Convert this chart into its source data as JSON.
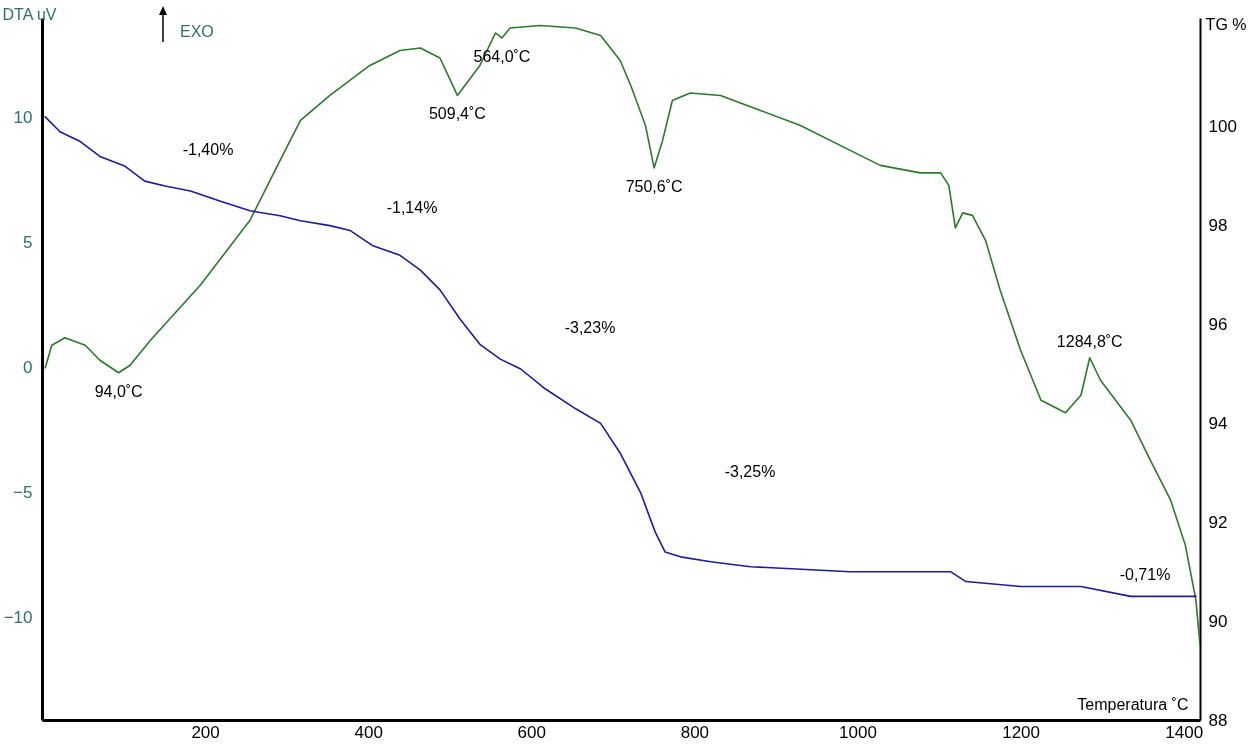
{
  "chart_data": {
    "type": "line",
    "xlabel": "Temperatura ˚C",
    "ylabel": "DTA uV",
    "y2label": "TG %",
    "xlim": [
      0,
      1420
    ],
    "xticks": [
      200,
      400,
      600,
      800,
      1000,
      1200,
      1400
    ],
    "ylim": [
      -14.1,
      14.0
    ],
    "yticks": [
      -10,
      -5,
      0,
      5,
      10
    ],
    "y2lim": [
      88,
      102.2
    ],
    "y2ticks": [
      88,
      90,
      92,
      94,
      96,
      98,
      100
    ],
    "series": [
      {
        "type": "line",
        "color": "#2b7a2b",
        "x": [
          4,
          12,
          28,
          53,
          71,
          94,
          108,
          133,
          194,
          255,
          292,
          317,
          353,
          402,
          439,
          464,
          488,
          509.4,
          537,
          556,
          564,
          574,
          611,
          654,
          685,
          709,
          722,
          740,
          750.6,
          761,
          773,
          795,
          832,
          881,
          930,
          991,
          1028,
          1077,
          1102,
          1112,
          1120,
          1129,
          1141,
          1157,
          1175,
          1200,
          1225,
          1255,
          1274,
          1284.8,
          1298,
          1335,
          1359,
          1384,
          1402,
          1415,
          1420
        ],
        "values": [
          0.0,
          0.9,
          1.2,
          0.9,
          0.3,
          -0.2,
          0.1,
          1.1,
          3.3,
          5.9,
          8.3,
          9.9,
          10.9,
          12.1,
          12.7,
          12.8,
          12.4,
          10.9,
          12.1,
          13.4,
          13.2,
          13.6,
          13.7,
          13.6,
          13.3,
          12.3,
          11.3,
          9.7,
          8.0,
          9.1,
          10.7,
          11.0,
          10.9,
          10.3,
          9.7,
          8.7,
          8.1,
          7.8,
          7.8,
          7.3,
          5.6,
          6.2,
          6.1,
          5.1,
          3.1,
          0.7,
          -1.3,
          -1.8,
          -1.1,
          0.4,
          -0.5,
          -2.1,
          -3.7,
          -5.3,
          -7.1,
          -9.3,
          -11.1
        ]
      },
      {
        "type": "line",
        "axis": "y2",
        "color": "#1c1c9c",
        "x": [
          4,
          22,
          47,
          71,
          102,
          126,
          151,
          182,
          218,
          255,
          292,
          317,
          353,
          378,
          405,
          439,
          464,
          488,
          513,
          537,
          562,
          587,
          617,
          654,
          685,
          709,
          734,
          752,
          764,
          783,
          820,
          869,
          991,
          1053,
          1114,
          1133,
          1200,
          1274,
          1335,
          1390,
          1415
        ],
        "values": [
          100.2,
          99.9,
          99.7,
          99.4,
          99.2,
          98.9,
          98.8,
          98.7,
          98.5,
          98.3,
          98.2,
          98.1,
          98.0,
          97.9,
          97.6,
          97.4,
          97.1,
          96.7,
          96.1,
          95.6,
          95.3,
          95.1,
          94.7,
          94.3,
          94.0,
          93.4,
          92.6,
          91.8,
          91.4,
          91.3,
          91.2,
          91.1,
          91.0,
          91.0,
          91.0,
          90.8,
          90.7,
          90.7,
          90.5,
          90.5,
          90.5
        ]
      }
    ],
    "annotations": [
      "EXO",
      {
        "text": "94,0˚C",
        "x": 94,
        "y": -0.2
      },
      {
        "text": "509,4˚C",
        "x": 509.4,
        "y": 10.9
      },
      {
        "text": "564,0˚C",
        "x": 564,
        "y": 13.2
      },
      {
        "text": "750,6˚C",
        "x": 750.6,
        "y": 8.0
      },
      {
        "text": "1284,8˚C",
        "x": 1284.8,
        "y": 0.4
      },
      "-1,40%",
      "-1,14%",
      "-3,23%",
      "-3,25%",
      "-0,71%"
    ]
  }
}
